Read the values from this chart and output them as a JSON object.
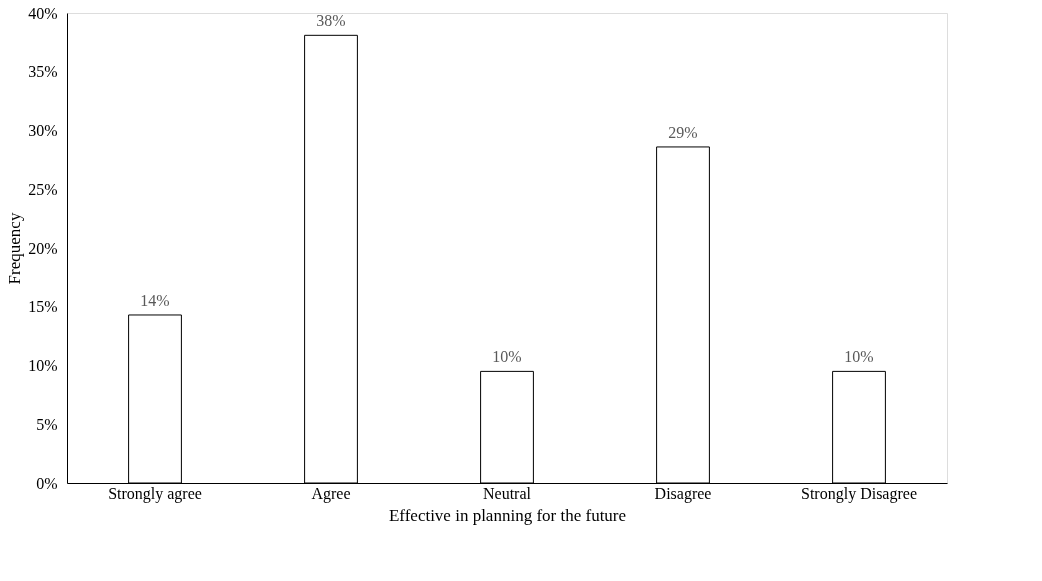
{
  "chart_data": {
    "type": "bar",
    "xlabel": "Effective in planning for the future",
    "ylabel": "Frequency",
    "categories": [
      "Strongly agree",
      "Agree",
      "Neutral",
      "Disagree",
      "Strongly Disagree"
    ],
    "values": [
      14.3,
      38.1,
      9.5,
      28.6,
      9.5
    ],
    "value_labels": [
      "14%",
      "38%",
      "10%",
      "29%",
      "10%"
    ],
    "color": "#ffffff",
    "ylim": [
      0,
      40
    ],
    "yticks": [
      {
        "value": 0,
        "label": "0%"
      },
      {
        "value": 5,
        "label": "5%"
      },
      {
        "value": 10,
        "label": "10%"
      },
      {
        "value": 15,
        "label": "15%"
      },
      {
        "value": 20,
        "label": "20%"
      },
      {
        "value": 25,
        "label": "25%"
      },
      {
        "value": 30,
        "label": "30%"
      },
      {
        "value": 35,
        "label": "35%"
      },
      {
        "value": 40,
        "label": "40%"
      }
    ],
    "grid": false
  }
}
